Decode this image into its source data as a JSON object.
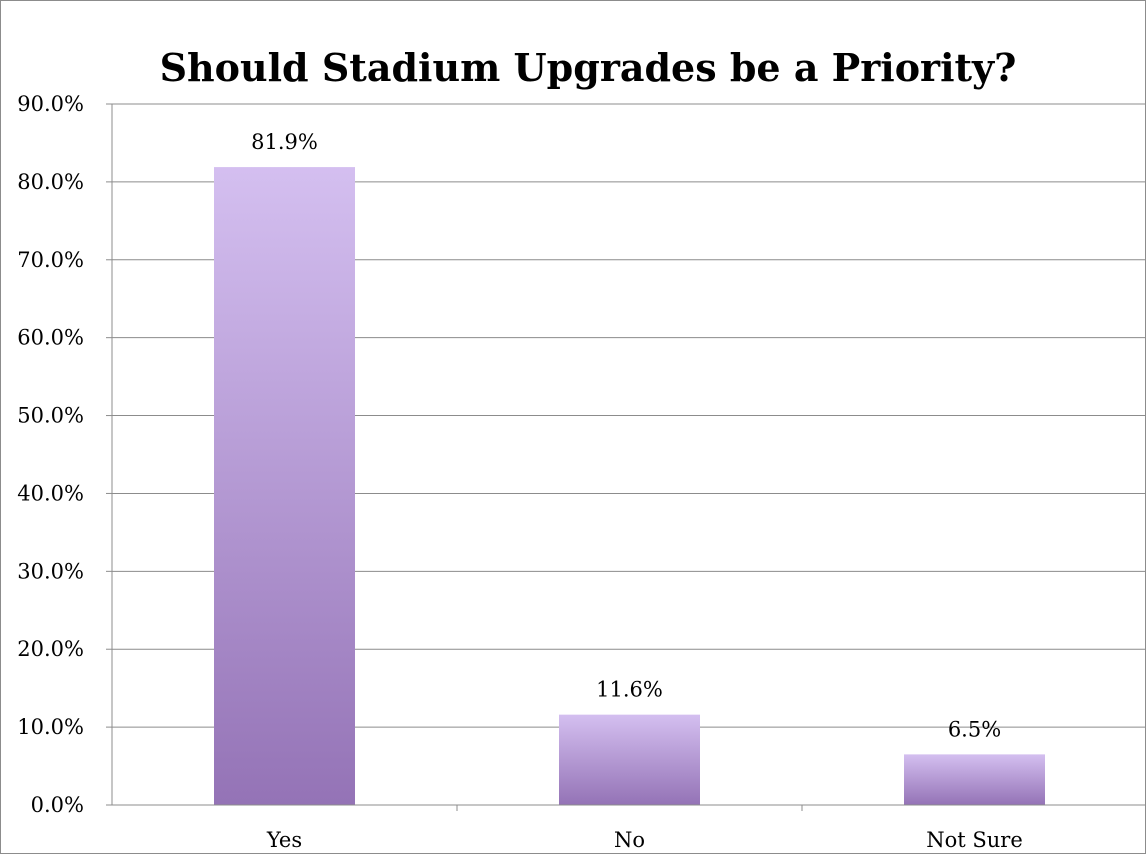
{
  "chart_data": {
    "type": "bar",
    "title": "Should Stadium Upgrades be a Priority?",
    "categories": [
      "Yes",
      "No",
      "Not Sure"
    ],
    "values": [
      81.9,
      11.6,
      6.5
    ],
    "data_labels": [
      "81.9%",
      "11.6%",
      "6.5%"
    ],
    "ylim": [
      0,
      90
    ],
    "yticks": [
      0,
      10,
      20,
      30,
      40,
      50,
      60,
      70,
      80,
      90
    ],
    "ytick_labels": [
      "0.0%",
      "10.0%",
      "20.0%",
      "30.0%",
      "40.0%",
      "50.0%",
      "60.0%",
      "70.0%",
      "80.0%",
      "90.0%"
    ],
    "xlabel": "",
    "ylabel": "",
    "grid": true,
    "legend": "none",
    "colors": {
      "bar_top": "#d4bff0",
      "bar_bottom": "#9473b6",
      "gridline": "#8c8c8c",
      "axis": "#8c8c8c"
    }
  }
}
